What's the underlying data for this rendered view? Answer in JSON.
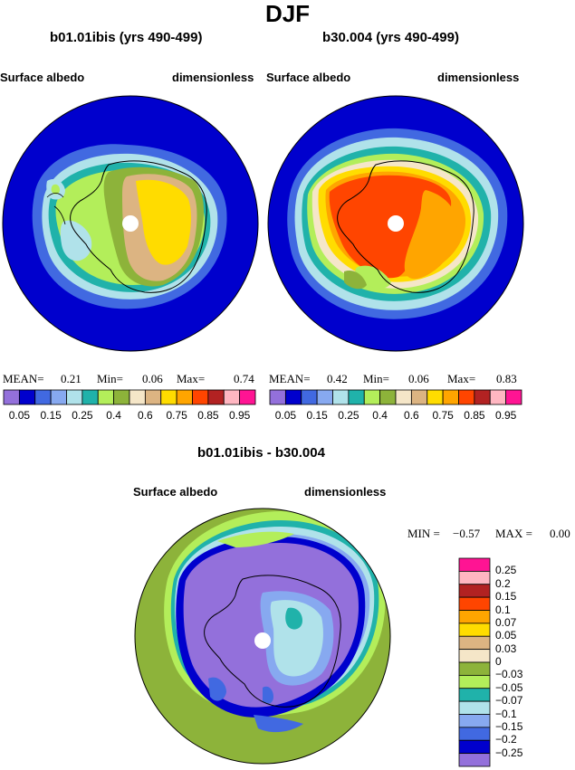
{
  "title": "DJF",
  "panels": [
    {
      "title": "b01.01ibis (yrs 490-499)",
      "left_label": "Surface albedo",
      "right_label": "dimensionless",
      "stats": {
        "mean_label": "MEAN=",
        "mean": "0.21",
        "min_label": "Min=",
        "min": "0.06",
        "max_label": "Max=",
        "max": "0.74"
      }
    },
    {
      "title": "b30.004 (yrs 490-499)",
      "left_label": "Surface albedo",
      "right_label": "dimensionless",
      "stats": {
        "mean_label": "MEAN=",
        "mean": "0.42",
        "min_label": "Min=",
        "min": "0.06",
        "max_label": "Max=",
        "max": "0.83"
      }
    }
  ],
  "albedo_colorbar": {
    "colors": [
      "#9370db",
      "#0000cd",
      "#4169e1",
      "#87a9f0",
      "#b0e2ea",
      "#20b2aa",
      "#b3ee5a",
      "#8db33a",
      "#f5e6c8",
      "#dcb482",
      "#ffdc00",
      "#ffa500",
      "#ff4500",
      "#b22222",
      "#ffb6c1",
      "#ff1493"
    ],
    "labels": [
      "0.05",
      "0.15",
      "0.25",
      "0.4",
      "0.6",
      "0.75",
      "0.85",
      "0.95"
    ]
  },
  "difference_panel": {
    "title": "b01.01ibis - b30.004",
    "left_label": "Surface albedo",
    "right_label": "dimensionless",
    "stats": {
      "min_label": "MIN =",
      "min": "−0.57",
      "max_label": "MAX =",
      "max": "0.00"
    }
  },
  "difference_colorbar": {
    "colors_top_to_bottom": [
      "#ff1493",
      "#ffb6c1",
      "#b22222",
      "#ff4500",
      "#ffa500",
      "#ffdc00",
      "#dcb482",
      "#f5e6c8",
      "#8db33a",
      "#b3ee5a",
      "#20b2aa",
      "#b0e2ea",
      "#87a9f0",
      "#4169e1",
      "#0000cd",
      "#9370db"
    ],
    "labels_top_to_bottom": [
      "0.25",
      "0.2",
      "0.15",
      "0.1",
      "0.07",
      "0.05",
      "0.03",
      "0",
      "−0.03",
      "−0.05",
      "−0.07",
      "−0.1",
      "−0.15",
      "−0.2",
      "−0.25"
    ]
  }
}
